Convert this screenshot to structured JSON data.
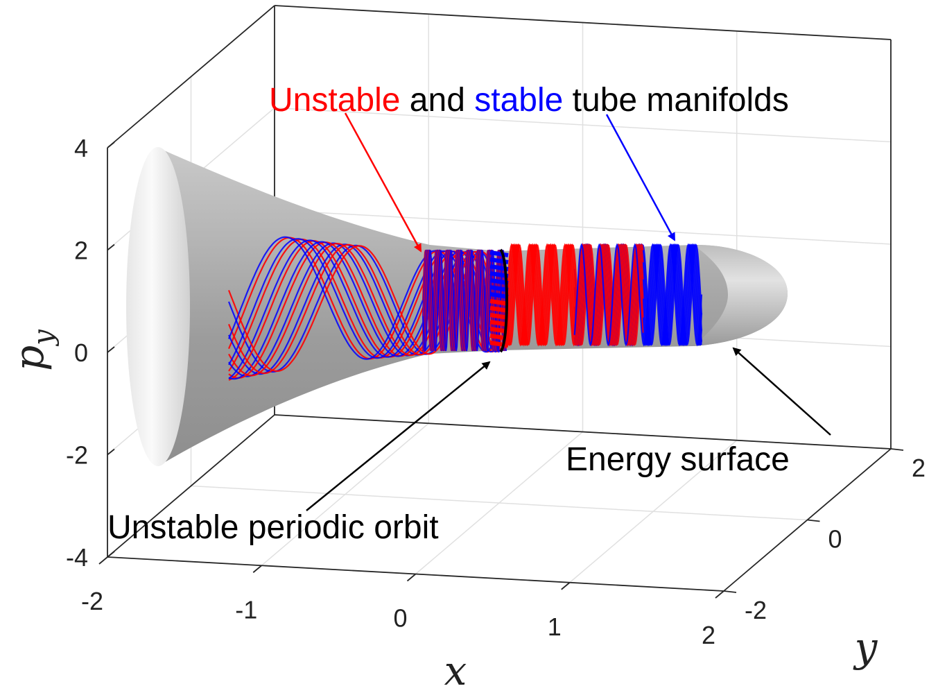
{
  "chart_data": {
    "type": "3d-surface-with-trajectories",
    "xlabel": "x",
    "ylabel": "y",
    "zlabel_base": "p",
    "zlabel_sub": "y",
    "xlim": [
      -2,
      2
    ],
    "ylim": [
      -2,
      2
    ],
    "zlim": [
      -4,
      4
    ],
    "x_ticks": [
      "-2",
      "-1",
      "0",
      "1",
      "2"
    ],
    "y_ticks": [
      "-2",
      "0",
      "2"
    ],
    "z_ticks": [
      "-4",
      "-2",
      "0",
      "2",
      "4"
    ],
    "grid": true,
    "colors": {
      "unstable": "#ff0000",
      "stable": "#0000ff",
      "orbit": "#000000",
      "surface": "#a8a8a8"
    },
    "annotations": {
      "tube_title": {
        "unstable_word": "Unstable",
        "and_word": "and",
        "stable_word": "stable",
        "rest": "tube manifolds"
      },
      "periodic_orbit": "Unstable periodic orbit",
      "energy_surface": "Energy surface"
    }
  }
}
